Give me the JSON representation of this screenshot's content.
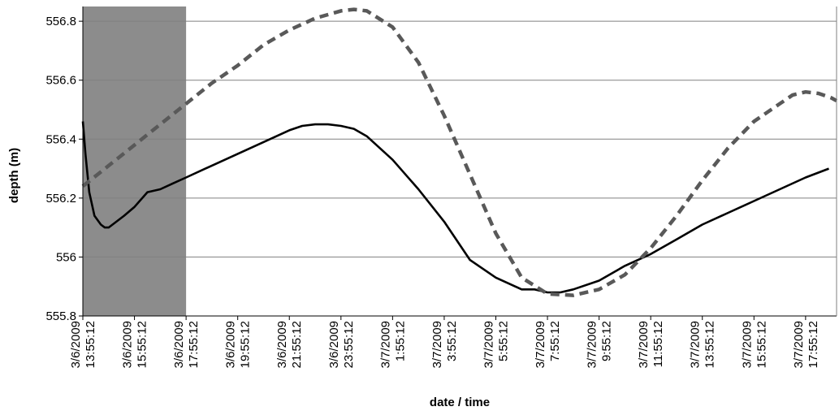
{
  "chart_data": {
    "type": "line",
    "title": "",
    "xlabel": "date / time",
    "ylabel": "depth (m)",
    "ylim": [
      555.8,
      556.85
    ],
    "yticks": [
      555.8,
      556,
      556.2,
      556.4,
      556.6,
      556.8
    ],
    "ytick_labels": [
      "555.8",
      "556",
      "556.2",
      "556.4",
      "556.6",
      "556.8"
    ],
    "x_unit": "hours since 3/6/2009 13:55:12",
    "xlim": [
      0,
      29.2
    ],
    "xticks": [
      {
        "h": 0,
        "date": "3/6/2009",
        "time": "13:55:12"
      },
      {
        "h": 2,
        "date": "3/6/2009",
        "time": "15:55:12"
      },
      {
        "h": 4,
        "date": "3/6/2009",
        "time": "17:55:12"
      },
      {
        "h": 6,
        "date": "3/6/2009",
        "time": "19:55:12"
      },
      {
        "h": 8,
        "date": "3/6/2009",
        "time": "21:55:12"
      },
      {
        "h": 10,
        "date": "3/6/2009",
        "time": "23:55:12"
      },
      {
        "h": 12,
        "date": "3/7/2009",
        "time": "1:55:12"
      },
      {
        "h": 14,
        "date": "3/7/2009",
        "time": "3:55:12"
      },
      {
        "h": 16,
        "date": "3/7/2009",
        "time": "5:55:12"
      },
      {
        "h": 18,
        "date": "3/7/2009",
        "time": "7:55:12"
      },
      {
        "h": 20,
        "date": "3/7/2009",
        "time": "9:55:12"
      },
      {
        "h": 22,
        "date": "3/7/2009",
        "time": "11:55:12"
      },
      {
        "h": 24,
        "date": "3/7/2009",
        "time": "13:55:12"
      },
      {
        "h": 26,
        "date": "3/7/2009",
        "time": "15:55:12"
      },
      {
        "h": 28,
        "date": "3/7/2009",
        "time": "17:55:12"
      }
    ],
    "shaded_region": {
      "x_start": 0,
      "x_end": 4,
      "color": "#8c8c8c"
    },
    "grid": "horizontal",
    "legend": "none",
    "series": [
      {
        "style": "solid",
        "color": "#000000",
        "x": [
          0,
          0.1,
          0.25,
          0.45,
          0.7,
          0.85,
          1.0,
          1.3,
          1.6,
          2.0,
          2.5,
          3.0,
          3.5,
          4.0,
          5.0,
          6.0,
          7.0,
          8.0,
          8.5,
          9.0,
          9.5,
          10.0,
          10.5,
          11.0,
          12.0,
          13.0,
          14.0,
          15.0,
          16.0,
          17.0,
          17.5,
          18.0,
          18.5,
          19.0,
          20.0,
          21.0,
          22.0,
          23.0,
          24.0,
          25.0,
          26.0,
          27.0,
          28.0,
          28.9
        ],
        "values": [
          556.46,
          556.35,
          556.22,
          556.14,
          556.11,
          556.1,
          556.1,
          556.12,
          556.14,
          556.17,
          556.22,
          556.23,
          556.25,
          556.27,
          556.31,
          556.35,
          556.39,
          556.43,
          556.445,
          556.45,
          556.45,
          556.445,
          556.435,
          556.41,
          556.33,
          556.23,
          556.12,
          555.99,
          555.93,
          555.89,
          555.89,
          555.88,
          555.88,
          555.89,
          555.92,
          555.97,
          556.01,
          556.06,
          556.11,
          556.15,
          556.19,
          556.23,
          556.27,
          556.3
        ]
      },
      {
        "style": "dashed",
        "color": "#595959",
        "x": [
          0,
          1,
          2,
          3,
          4,
          5,
          6,
          7,
          8,
          9,
          10,
          10.5,
          11,
          12,
          13,
          14,
          15,
          16,
          17,
          18,
          19,
          20,
          21,
          22,
          23,
          24,
          25,
          26,
          27,
          27.5,
          28,
          28.5,
          29,
          29.2
        ],
        "values": [
          556.24,
          556.31,
          556.38,
          556.45,
          556.52,
          556.59,
          556.65,
          556.72,
          556.77,
          556.81,
          556.835,
          556.84,
          556.835,
          556.78,
          556.66,
          556.48,
          556.28,
          556.08,
          555.93,
          555.875,
          555.87,
          555.89,
          555.94,
          556.03,
          556.14,
          556.26,
          556.37,
          556.46,
          556.52,
          556.55,
          556.56,
          556.555,
          556.54,
          556.53
        ]
      }
    ]
  }
}
